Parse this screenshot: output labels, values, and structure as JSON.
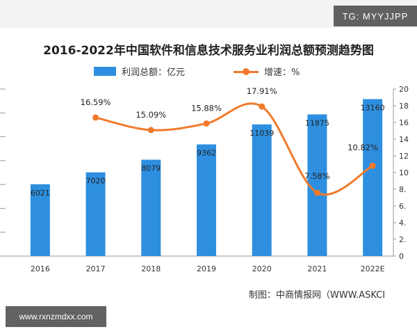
{
  "watermarks": {
    "top_right": "TG: MYYJJPP",
    "bottom_left": "www.rxnzmdxx.com"
  },
  "title": "2016-2022年中国软件和信息技术服务业利润总额预测趋势图",
  "legend": {
    "bar": "利润总额：亿元",
    "line": "增速：%"
  },
  "source": "制图：中商情报网（WWW.ASKCI",
  "colors": {
    "bar": "#2e8fe0",
    "line": "#f07a2c"
  },
  "chart_data": {
    "type": "bar",
    "title": "2016-2022年中国软件和信息技术服务业利润总额预测趋势图",
    "categories": [
      "2016",
      "2017",
      "2018",
      "2019",
      "2020",
      "2021",
      "2022E"
    ],
    "series": [
      {
        "name": "利润总额：亿元",
        "type": "bar",
        "values": [
          6021,
          7020,
          8079,
          9362,
          11039,
          11875,
          13160
        ],
        "labels": [
          "6021",
          "7020",
          "8079",
          "9362",
          "11039",
          "11875",
          "13160"
        ]
      },
      {
        "name": "增速：%",
        "type": "line",
        "axis": "right",
        "values": [
          null,
          16.59,
          15.09,
          15.88,
          17.91,
          7.58,
          10.82
        ],
        "labels": [
          "",
          "16.59%",
          "15.09%",
          "15.88%",
          "17.91%",
          "7.58%",
          "10.82%"
        ]
      }
    ],
    "left_axis": {
      "ylim": [
        0,
        14000
      ]
    },
    "right_axis": {
      "ylim": [
        0,
        20
      ],
      "ticks": [
        "0",
        "2.",
        "4.",
        "6.",
        "8.",
        "10",
        "12",
        "14",
        "16",
        "18",
        "20"
      ]
    },
    "grid": false,
    "legend_position": "top"
  }
}
